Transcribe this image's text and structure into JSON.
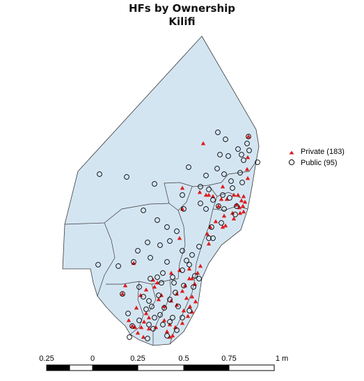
{
  "title": "HFs by Ownership",
  "subtitle": "Kilifi",
  "legend": [
    {
      "label": "Private (183)",
      "marker": "triangle",
      "color": "#dd1c1c"
    },
    {
      "label": "Public (95)",
      "marker": "circle",
      "color": "#000000"
    }
  ],
  "map_fill": "#d4e5f2",
  "map_stroke": "#3a3a3a",
  "scale_bar": {
    "labels": [
      "0.25",
      "0",
      "0.25",
      "0.5",
      "0.75",
      "1 m"
    ]
  }
}
